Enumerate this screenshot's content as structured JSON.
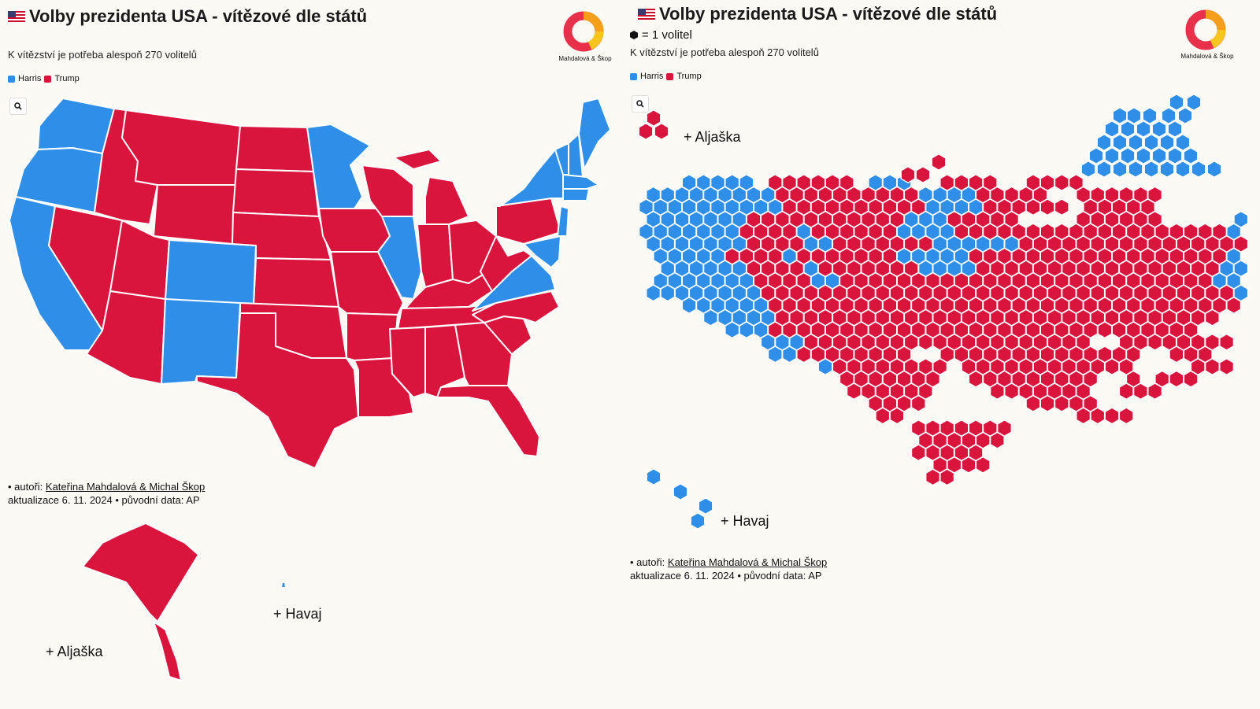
{
  "colors": {
    "harris": "#2f8fe8",
    "trump": "#d9143d",
    "background": "#fbf9f3"
  },
  "icons": {
    "flag": "us-flag-icon",
    "zoom": "magnifier-icon",
    "logo": "mahdalova-skop-logo",
    "unit": "hexagon-icon"
  },
  "left": {
    "title": "Volby prezidenta USA - vítězové dle států",
    "subtitle": "K vítězství je potřeba alespoň 270 volitelů",
    "legend": [
      "Harris",
      "Trump"
    ],
    "logo_text": "Mahdalová & Škop",
    "credits_prefix": "• autoři: ",
    "authors": "Kateřina Mahdalová & Michal Škop",
    "update_line": "aktualizace 6. 11. 2024 • původní data: AP",
    "alaska_label": "+ Aljaška",
    "hawaii_label": "+ Havaj"
  },
  "right": {
    "title": "Volby prezidenta USA - vítězové dle států",
    "unit_note": "= 1 volitel",
    "subtitle": "K vítězství je potřeba alespoň 270 volitelů",
    "legend": [
      "Harris",
      "Trump"
    ],
    "logo_text": "Mahdalová & Škop",
    "credits_prefix": "• autoři: ",
    "authors": "Kateřina Mahdalová & Michal Škop",
    "update_line": "aktualizace 6. 11. 2024 • původní data: AP",
    "alaska_label": "+ Aljaška",
    "hawaii_label": "+ Havaj"
  },
  "state_winners": {
    "Harris": [
      "Washington",
      "Oregon",
      "California",
      "Colorado",
      "New Mexico",
      "Minnesota",
      "Illinois",
      "Virginia",
      "New York",
      "Vermont",
      "New Hampshire",
      "Massachusetts",
      "Connecticut",
      "Rhode Island",
      "New Jersey",
      "Delaware",
      "Maryland",
      "Maine",
      "Hawaii"
    ],
    "Trump": [
      "Idaho",
      "Nevada",
      "Montana",
      "Wyoming",
      "Utah",
      "Arizona",
      "North Dakota",
      "South Dakota",
      "Nebraska",
      "Kansas",
      "Oklahoma",
      "Texas",
      "Iowa",
      "Missouri",
      "Arkansas",
      "Louisiana",
      "Wisconsin",
      "Michigan",
      "Indiana",
      "Ohio",
      "Kentucky",
      "Tennessee",
      "Mississippi",
      "Alabama",
      "Georgia",
      "Florida",
      "South Carolina",
      "North Carolina",
      "West Virginia",
      "Pennsylvania",
      "Alaska"
    ]
  }
}
